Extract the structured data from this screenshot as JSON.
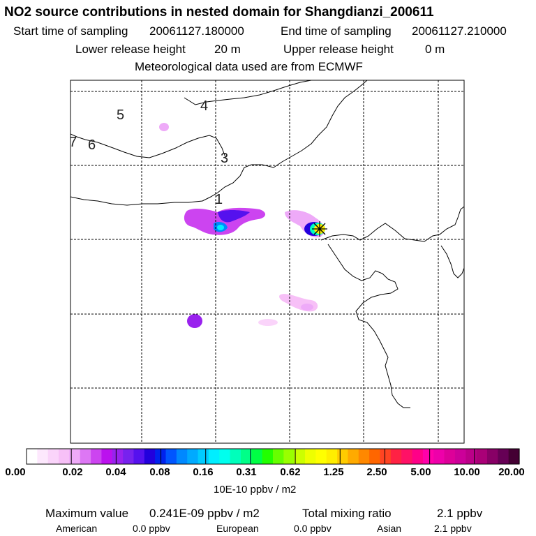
{
  "header": {
    "title": "NO2 source contributions in nested domain for Shangdianzi_200611",
    "start_label": "Start time of sampling",
    "start_value": "20061127.180000",
    "end_label": "End time of sampling",
    "end_value": "20061127.210000",
    "lower_label": "Lower release height",
    "lower_value": "20 m",
    "upper_label": "Upper release height",
    "upper_value": "0 m",
    "met_text": "Meteorological data used are from ECMWF"
  },
  "map": {
    "region_labels": [
      "1",
      "3",
      "4",
      "5",
      "6",
      "7"
    ],
    "receptor_marker": "receptor-star"
  },
  "colorbar": {
    "tick_labels": [
      "0.00",
      "0.02",
      "0.04",
      "0.08",
      "0.16",
      "0.31",
      "0.62",
      "1.25",
      "2.50",
      "5.00",
      "10.00",
      "20.00"
    ],
    "unit_label": "10E-10 ppbv / m2",
    "colors": [
      "#ffffff",
      "#fde8fd",
      "#fad4fa",
      "#f7c0f7",
      "#eeaaf8",
      "#dd77f4",
      "#cc44f0",
      "#bb11ee",
      "#9922ee",
      "#7722ee",
      "#5511ee",
      "#2200dd",
      "#0022ee",
      "#0055ff",
      "#0088ff",
      "#00aaff",
      "#00ccff",
      "#00eeff",
      "#00ffee",
      "#00ffbb",
      "#00ff88",
      "#00ff44",
      "#22ff00",
      "#66ff00",
      "#99ff00",
      "#ccff00",
      "#eeff00",
      "#ffff00",
      "#ffee00",
      "#ffcc00",
      "#ffaa00",
      "#ff8800",
      "#ff6600",
      "#ff4422",
      "#ff2244",
      "#ff1166",
      "#ff0088",
      "#ff00aa",
      "#ee00aa",
      "#dd0099",
      "#cc0099",
      "#bb0088",
      "#aa0077",
      "#880066",
      "#660055",
      "#440033"
    ]
  },
  "footer": {
    "max_label": "Maximum value",
    "max_value": "0.241E-09 ppbv / m2",
    "total_label": "Total mixing ratio",
    "total_value": "2.1 ppbv",
    "american_label": "American",
    "american_value": "0.0 ppbv",
    "european_label": "European",
    "european_value": "0.0 ppbv",
    "asian_label": "Asian",
    "asian_value": "2.1 ppbv"
  }
}
